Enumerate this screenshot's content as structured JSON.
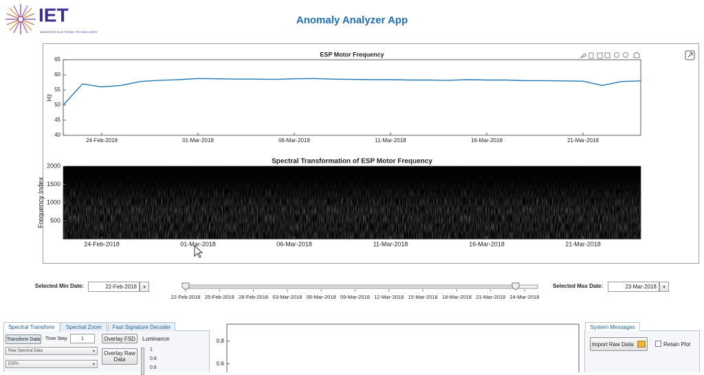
{
  "header": {
    "logo": "IET",
    "logo_subtitle": "INNOVATIVE ELECTRONIC TECHNOLOGIES",
    "title": "Anomaly Analyzer App"
  },
  "chart_data": [
    {
      "type": "line",
      "title": "ESP Motor Frequency",
      "y_label": "Hz",
      "x": [
        "2018-02-22",
        "2018-02-23",
        "2018-02-24",
        "2018-02-25",
        "2018-02-26",
        "2018-02-27",
        "2018-02-28",
        "2018-03-01",
        "2018-03-02",
        "2018-03-03",
        "2018-03-04",
        "2018-03-05",
        "2018-03-06",
        "2018-03-07",
        "2018-03-08",
        "2018-03-09",
        "2018-03-10",
        "2018-03-11",
        "2018-03-12",
        "2018-03-13",
        "2018-03-14",
        "2018-03-15",
        "2018-03-16",
        "2018-03-17",
        "2018-03-18",
        "2018-03-19",
        "2018-03-20",
        "2018-03-21",
        "2018-03-22",
        "2018-03-23",
        "2018-03-24"
      ],
      "values": [
        50,
        57,
        56,
        56.5,
        57.8,
        58.2,
        58.4,
        58.8,
        58.7,
        58.6,
        58.6,
        58.5,
        58.7,
        58.8,
        58.6,
        58.5,
        58.4,
        58.4,
        58.3,
        58.3,
        58.2,
        58.4,
        58.3,
        58.3,
        58.1,
        58.1,
        58.0,
        57.9,
        56.5,
        57.8,
        58.0
      ],
      "color": "#1f77b4",
      "xlim": [
        "2018-02-22",
        "2018-03-24"
      ],
      "xticks": [
        {
          "value": "2018-02-24",
          "label": "24-Feb-2018"
        },
        {
          "value": "2018-03-01",
          "label": "01-Mar-2018"
        },
        {
          "value": "2018-03-06",
          "label": "06-Mar-2018"
        },
        {
          "value": "2018-03-11",
          "label": "11-Mar-2018"
        },
        {
          "value": "2018-03-16",
          "label": "16-Mar-2018"
        },
        {
          "value": "2018-03-21",
          "label": "21-Mar-2018"
        }
      ],
      "ylim": [
        40,
        65
      ],
      "yticks": [
        40,
        45,
        50,
        55,
        60,
        65
      ]
    },
    {
      "type": "spectrogram",
      "title": "Spectral Transformation of ESP Motor Frequency",
      "y_label": "Frequency Index",
      "xlim": [
        "2018-02-22",
        "2018-03-24"
      ],
      "xticks": [
        {
          "value": "2018-02-24",
          "label": "24-Feb-2018"
        },
        {
          "value": "2018-03-01",
          "label": "01-Mar-2018"
        },
        {
          "value": "2018-03-06",
          "label": "06-Mar-2018"
        },
        {
          "value": "2018-03-11",
          "label": "11-Mar-2018"
        },
        {
          "value": "2018-03-16",
          "label": "16-Mar-2018"
        },
        {
          "value": "2018-03-21",
          "label": "21-Mar-2018"
        }
      ],
      "ylim": [
        0,
        2000
      ],
      "yticks": [
        500,
        1000,
        1500,
        2000
      ]
    },
    {
      "type": "line",
      "ylim": [
        0.55,
        0.95
      ],
      "yticks": [
        0.6,
        0.8
      ]
    }
  ],
  "date_range": {
    "min_label": "Selected Min Date:",
    "min_value": "22-Feb-2018",
    "max_label": "Selected Max Date:",
    "max_value": "23-Mar-2018",
    "slider_ticks": [
      "22-Feb-2018",
      "25-Feb-2018",
      "28-Feb-2018",
      "03-Mar-2018",
      "06-Mar-2018",
      "09-Mar-2018",
      "12-Mar-2018",
      "15-Mar-2018",
      "18-Mar-2018",
      "21-Mar-2018",
      "24-Mar-2018"
    ]
  },
  "tabs": [
    "Spectral Transform",
    "Spectral Zoom",
    "Fast Signature Decoder"
  ],
  "controls": {
    "transform_button": "Transform Data",
    "time_step_label": "Time Step",
    "time_step_value": "1",
    "overlay_fsd_button": "Overlay FSD",
    "luminance_label": "Luminance",
    "data_dropdown": "Raw Spectral Data",
    "esp_dropdown": "ESPs",
    "overlay_raw_button": "Overlay Raw Data",
    "luminance_ticks": [
      "1",
      "0.8",
      "0.6"
    ]
  },
  "system_messages": {
    "tab": "System Messages",
    "import_button": "Import Raw Data:",
    "retain_checkbox": "Retain Plot"
  }
}
